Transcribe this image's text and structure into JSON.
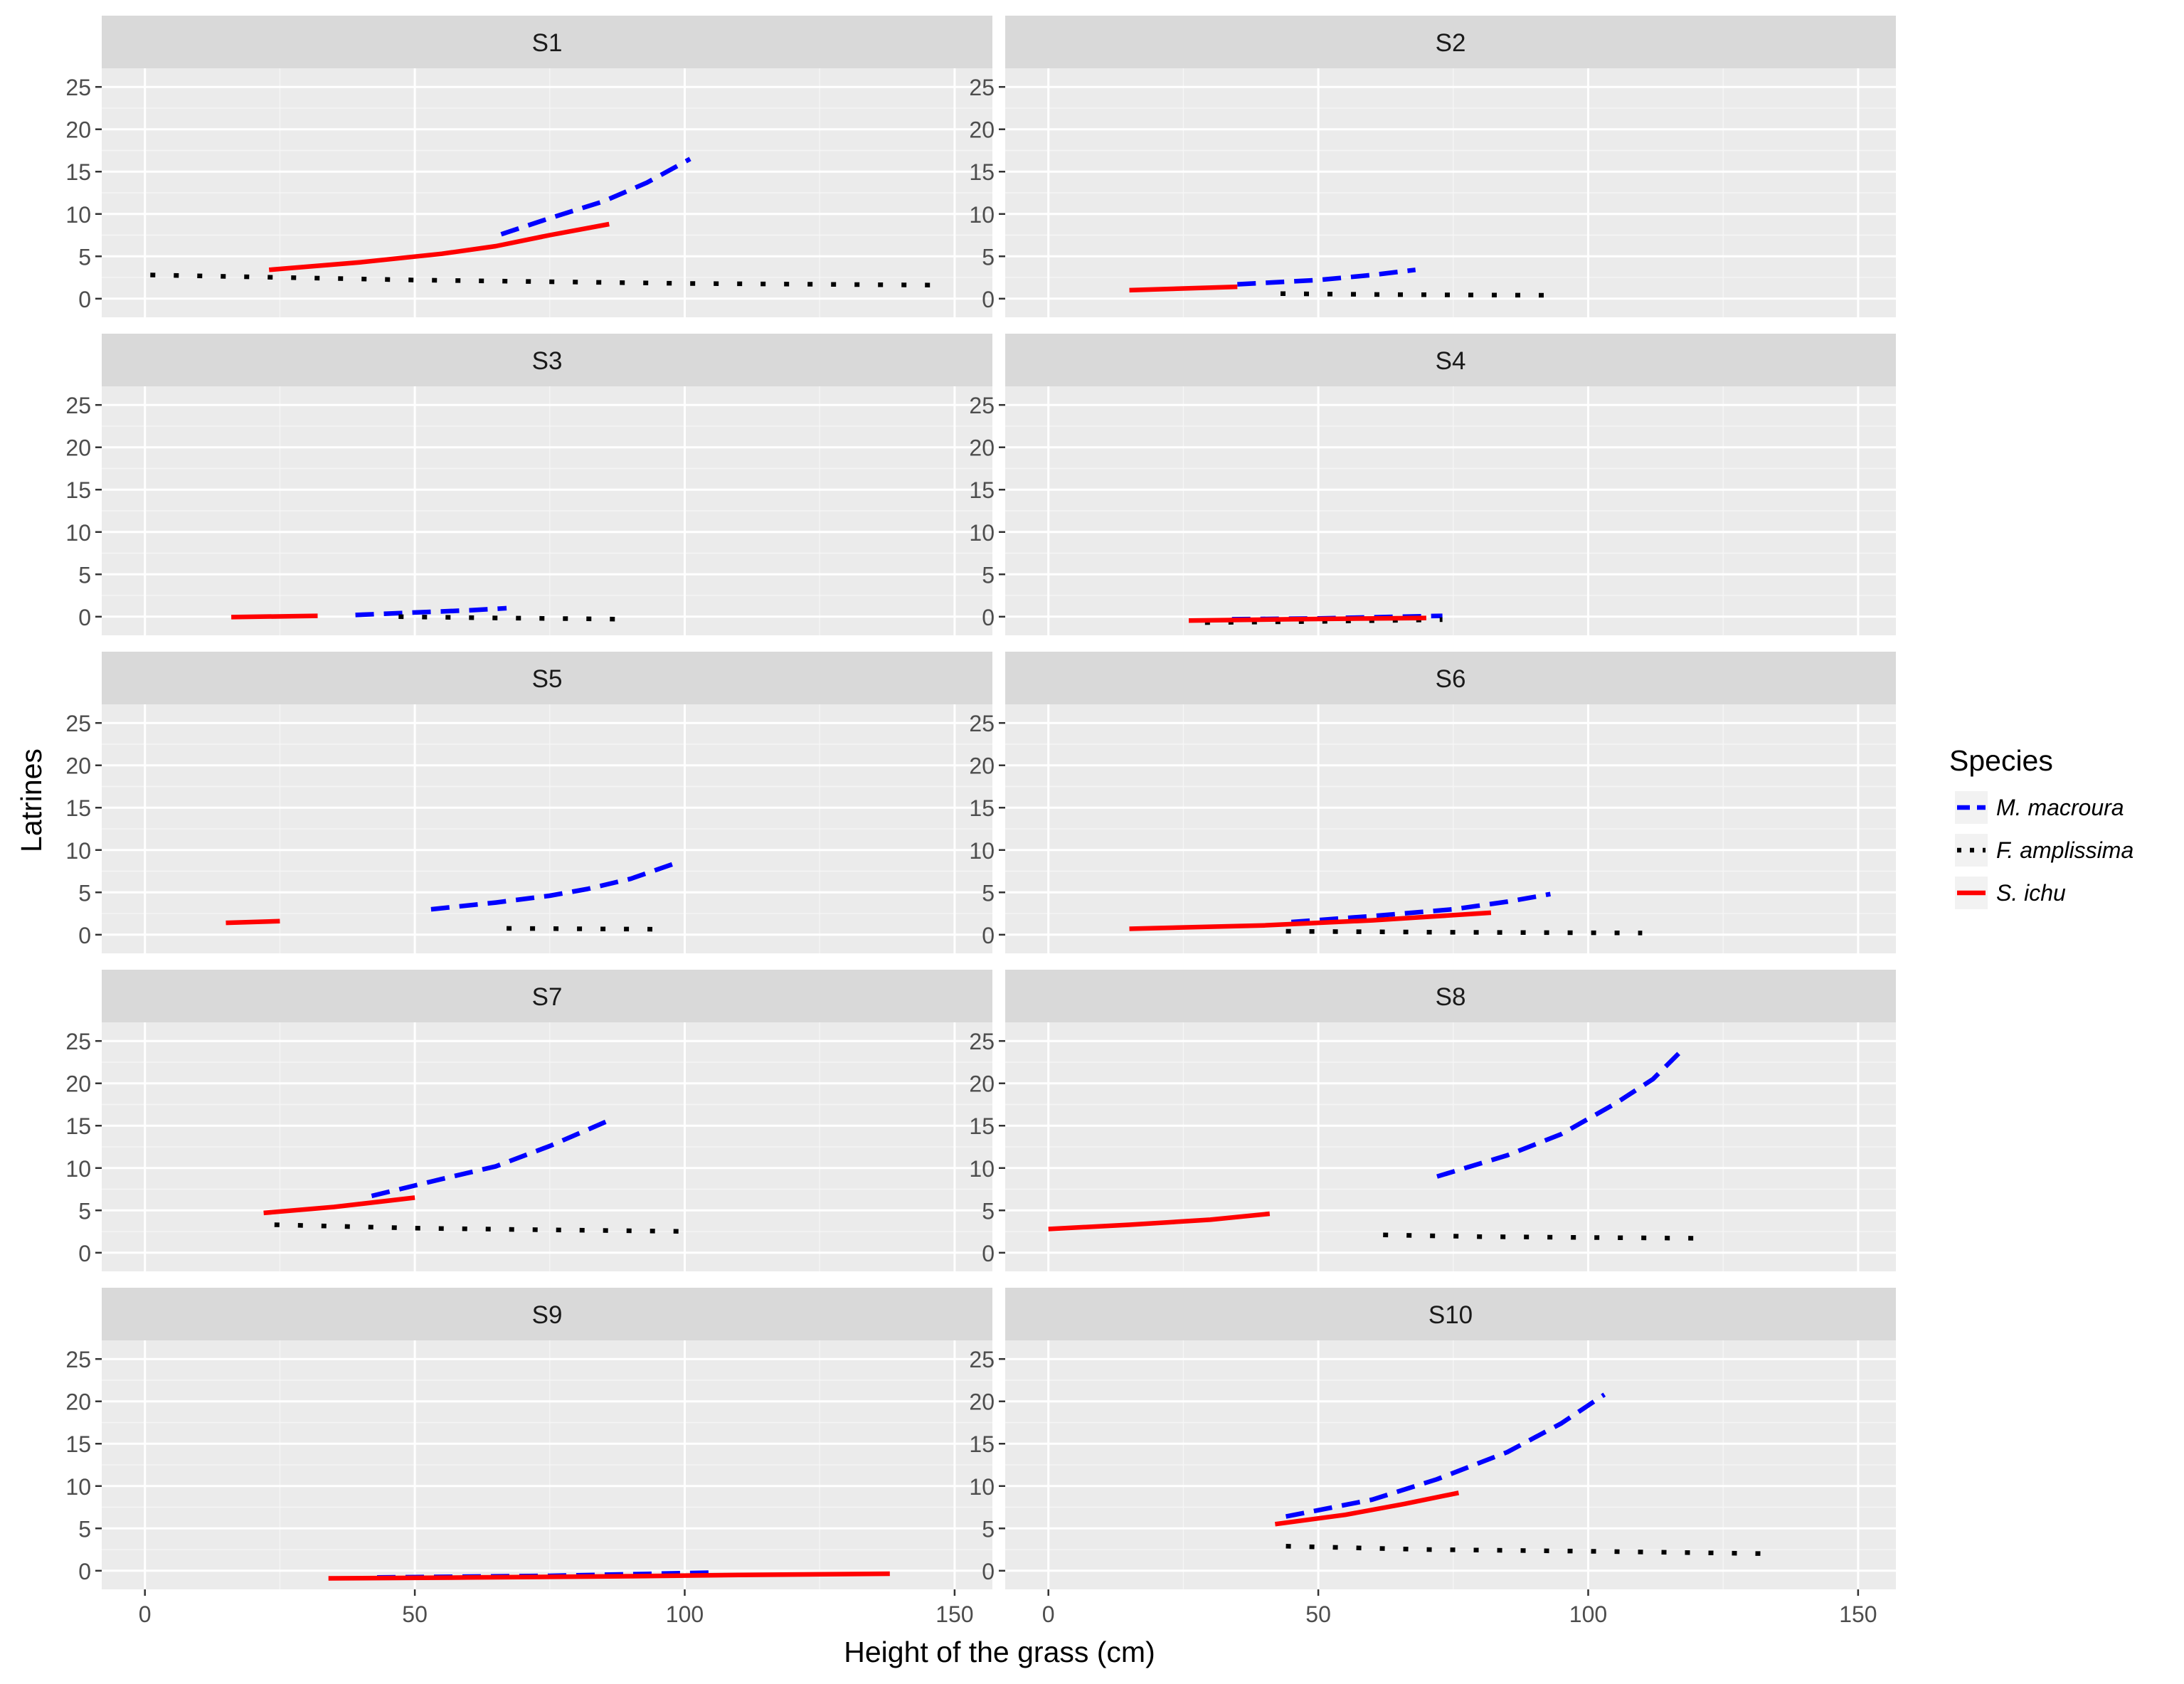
{
  "chart_data": {
    "type": "line",
    "facet_layout": "5 rows x 2 columns",
    "xlabel": "Height of the grass (cm)",
    "ylabel": "Latrines",
    "xlim": [
      -8,
      157
    ],
    "ylim": [
      -2.2,
      27.2
    ],
    "x_ticks": [
      0,
      50,
      100,
      150
    ],
    "y_ticks": [
      0,
      5,
      10,
      15,
      20,
      25
    ],
    "grid": true,
    "legend": {
      "title": "Species",
      "placement": "right",
      "items": [
        {
          "key": "m",
          "label": "M. macroura"
        },
        {
          "key": "f",
          "label": "F. amplissima"
        },
        {
          "key": "s",
          "label": "S. ichu"
        }
      ]
    },
    "series_styles": {
      "m": {
        "color": "#0000ff",
        "dash": "dashed"
      },
      "f": {
        "color": "#000000",
        "dash": "dotted"
      },
      "s": {
        "color": "#ff0000",
        "dash": "solid"
      }
    },
    "panels": [
      {
        "title": "S1",
        "series": [
          {
            "key": "m",
            "x": [
              66,
              75,
              85,
              93,
              101
            ],
            "y": [
              7.6,
              9.5,
              11.5,
              13.7,
              16.5
            ]
          },
          {
            "key": "f",
            "x": [
              1,
              25,
              50,
              75,
              100,
              125,
              147
            ],
            "y": [
              2.8,
              2.5,
              2.2,
              2.0,
              1.8,
              1.7,
              1.6
            ]
          },
          {
            "key": "s",
            "x": [
              23,
              40,
              55,
              65,
              75,
              86
            ],
            "y": [
              3.4,
              4.3,
              5.3,
              6.2,
              7.5,
              8.8
            ]
          }
        ]
      },
      {
        "title": "S2",
        "series": [
          {
            "key": "m",
            "x": [
              35,
              50,
              60,
              68
            ],
            "y": [
              1.7,
              2.2,
              2.8,
              3.4
            ]
          },
          {
            "key": "f",
            "x": [
              43,
              60,
              75,
              92
            ],
            "y": [
              0.6,
              0.5,
              0.45,
              0.4
            ]
          },
          {
            "key": "s",
            "x": [
              15,
              35
            ],
            "y": [
              1.0,
              1.4
            ]
          }
        ]
      },
      {
        "title": "S3",
        "series": [
          {
            "key": "m",
            "x": [
              39,
              50,
              60,
              67
            ],
            "y": [
              0.2,
              0.5,
              0.75,
              1.0
            ]
          },
          {
            "key": "f",
            "x": [
              47,
              65,
              90
            ],
            "y": [
              0.0,
              -0.15,
              -0.3
            ]
          },
          {
            "key": "s",
            "x": [
              16,
              32
            ],
            "y": [
              -0.05,
              0.1
            ]
          }
        ]
      },
      {
        "title": "S4",
        "series": [
          {
            "key": "m",
            "x": [
              34,
              50,
              73
            ],
            "y": [
              -0.3,
              -0.2,
              0.1
            ]
          },
          {
            "key": "f",
            "x": [
              29,
              50,
              73
            ],
            "y": [
              -0.7,
              -0.55,
              -0.35
            ]
          },
          {
            "key": "s",
            "x": [
              26,
              45,
              70
            ],
            "y": [
              -0.45,
              -0.3,
              -0.15
            ]
          }
        ]
      },
      {
        "title": "S5",
        "series": [
          {
            "key": "m",
            "x": [
              53,
              65,
              75,
              82,
              90,
              99
            ],
            "y": [
              3.0,
              3.8,
              4.6,
              5.4,
              6.6,
              8.6
            ]
          },
          {
            "key": "f",
            "x": [
              67,
              80,
              94
            ],
            "y": [
              0.75,
              0.7,
              0.65
            ]
          },
          {
            "key": "s",
            "x": [
              15,
              25
            ],
            "y": [
              1.4,
              1.6
            ]
          }
        ]
      },
      {
        "title": "S6",
        "series": [
          {
            "key": "m",
            "x": [
              45,
              60,
              75,
              85,
              93
            ],
            "y": [
              1.5,
              2.2,
              3.0,
              3.9,
              4.8
            ]
          },
          {
            "key": "f",
            "x": [
              44,
              70,
              90,
              110
            ],
            "y": [
              0.4,
              0.3,
              0.25,
              0.2
            ]
          },
          {
            "key": "s",
            "x": [
              15,
              40,
              60,
              82
            ],
            "y": [
              0.7,
              1.1,
              1.7,
              2.6
            ]
          }
        ]
      },
      {
        "title": "S7",
        "series": [
          {
            "key": "m",
            "x": [
              42,
              55,
              65,
              75,
              87
            ],
            "y": [
              6.7,
              8.7,
              10.2,
              12.6,
              15.9
            ]
          },
          {
            "key": "f",
            "x": [
              24,
              50,
              75,
              102
            ],
            "y": [
              3.3,
              2.9,
              2.7,
              2.5
            ]
          },
          {
            "key": "s",
            "x": [
              22,
              35,
              50
            ],
            "y": [
              4.7,
              5.4,
              6.5
            ]
          }
        ]
      },
      {
        "title": "S8",
        "series": [
          {
            "key": "m",
            "x": [
              72,
              85,
              95,
              105,
              112,
              118
            ],
            "y": [
              9.0,
              11.5,
              14.0,
              17.6,
              20.5,
              24.3
            ]
          },
          {
            "key": "f",
            "x": [
              62,
              80,
              100,
              122
            ],
            "y": [
              2.1,
              1.9,
              1.8,
              1.7
            ]
          },
          {
            "key": "s",
            "x": [
              0,
              15,
              30,
              41
            ],
            "y": [
              2.8,
              3.3,
              3.9,
              4.6
            ]
          }
        ]
      },
      {
        "title": "S9",
        "series": [
          {
            "key": "m",
            "x": [
              43,
              75,
              106
            ],
            "y": [
              -0.8,
              -0.6,
              -0.2
            ]
          },
          {
            "key": "f",
            "x": [],
            "y": []
          },
          {
            "key": "s",
            "x": [
              34,
              60,
              90,
              110,
              138
            ],
            "y": [
              -0.9,
              -0.8,
              -0.65,
              -0.5,
              -0.35
            ]
          }
        ]
      },
      {
        "title": "S10",
        "series": [
          {
            "key": "m",
            "x": [
              44,
              60,
              72,
              85,
              95,
              103
            ],
            "y": [
              6.4,
              8.4,
              10.8,
              14.0,
              17.4,
              20.8
            ]
          },
          {
            "key": "f",
            "x": [
              44,
              70,
              100,
              135
            ],
            "y": [
              2.9,
              2.5,
              2.3,
              2.0
            ]
          },
          {
            "key": "s",
            "x": [
              42,
              55,
              66,
              76
            ],
            "y": [
              5.5,
              6.6,
              7.9,
              9.2
            ]
          }
        ]
      }
    ]
  }
}
